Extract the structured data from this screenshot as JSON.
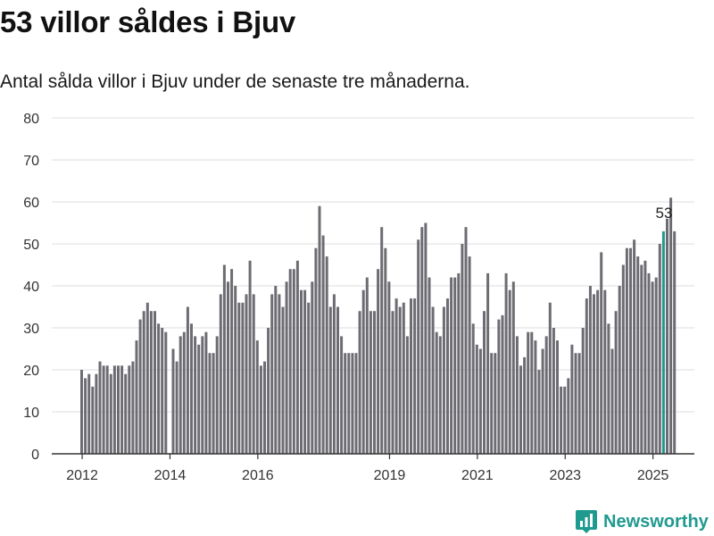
{
  "title": "53 villor såldes i Bjuv",
  "subtitle": "Antal sålda villor i Bjuv under de senaste tre månaderna.",
  "brand": {
    "name": "Newsworthy",
    "color": "#1f9a8f",
    "icon": "bar-chart-logo-icon"
  },
  "colors": {
    "bar": "#6d6c73",
    "highlight": "#1f9a8f",
    "grid": "#dedede",
    "axis": "#333333",
    "text": "#333333"
  },
  "chart_data": {
    "type": "bar",
    "x_start": "2012-01",
    "x_end": "2025-04",
    "x_ticks": [
      {
        "label": "2012",
        "date": "2012-01"
      },
      {
        "label": "2014",
        "date": "2014-01"
      },
      {
        "label": "2016",
        "date": "2016-01"
      },
      {
        "label": "2019",
        "date": "2019-01"
      },
      {
        "label": "2021",
        "date": "2021-01"
      },
      {
        "label": "2023",
        "date": "2023-01"
      },
      {
        "label": "2025",
        "date": "2025-01"
      }
    ],
    "ylim": [
      0,
      80
    ],
    "yticks": [
      0,
      10,
      20,
      30,
      40,
      50,
      60,
      70,
      80
    ],
    "grid": true,
    "values": [
      20,
      18,
      19,
      16,
      19,
      22,
      21,
      21,
      19,
      21,
      21,
      21,
      19,
      21,
      22,
      27,
      32,
      34,
      36,
      34,
      34,
      31,
      30,
      29,
      null,
      25,
      22,
      28,
      29,
      35,
      31,
      28,
      26,
      28,
      29,
      24,
      24,
      28,
      38,
      45,
      41,
      44,
      40,
      36,
      36,
      38,
      46,
      38,
      27,
      21,
      22,
      30,
      38,
      40,
      38,
      35,
      41,
      44,
      44,
      46,
      39,
      39,
      36,
      41,
      49,
      59,
      52,
      47,
      35,
      38,
      35,
      28,
      24,
      24,
      24,
      24,
      34,
      39,
      42,
      34,
      34,
      44,
      54,
      49,
      41,
      34,
      37,
      35,
      36,
      28,
      37,
      37,
      51,
      54,
      55,
      42,
      35,
      29,
      28,
      35,
      37,
      42,
      42,
      43,
      50,
      54,
      47,
      31,
      26,
      25,
      34,
      43,
      24,
      24,
      32,
      33,
      43,
      39,
      41,
      28,
      21,
      23,
      29,
      29,
      27,
      20,
      25,
      28,
      36,
      30,
      27,
      16,
      16,
      18,
      26,
      24,
      24,
      30,
      37,
      40,
      38,
      39,
      48,
      39,
      31,
      25,
      34,
      40,
      45,
      49,
      49,
      51,
      47,
      45,
      46,
      43,
      41,
      42,
      50,
      53,
      56,
      61,
      53
    ],
    "highlight": {
      "date": "2025-04",
      "value": 53,
      "label": "53"
    }
  }
}
